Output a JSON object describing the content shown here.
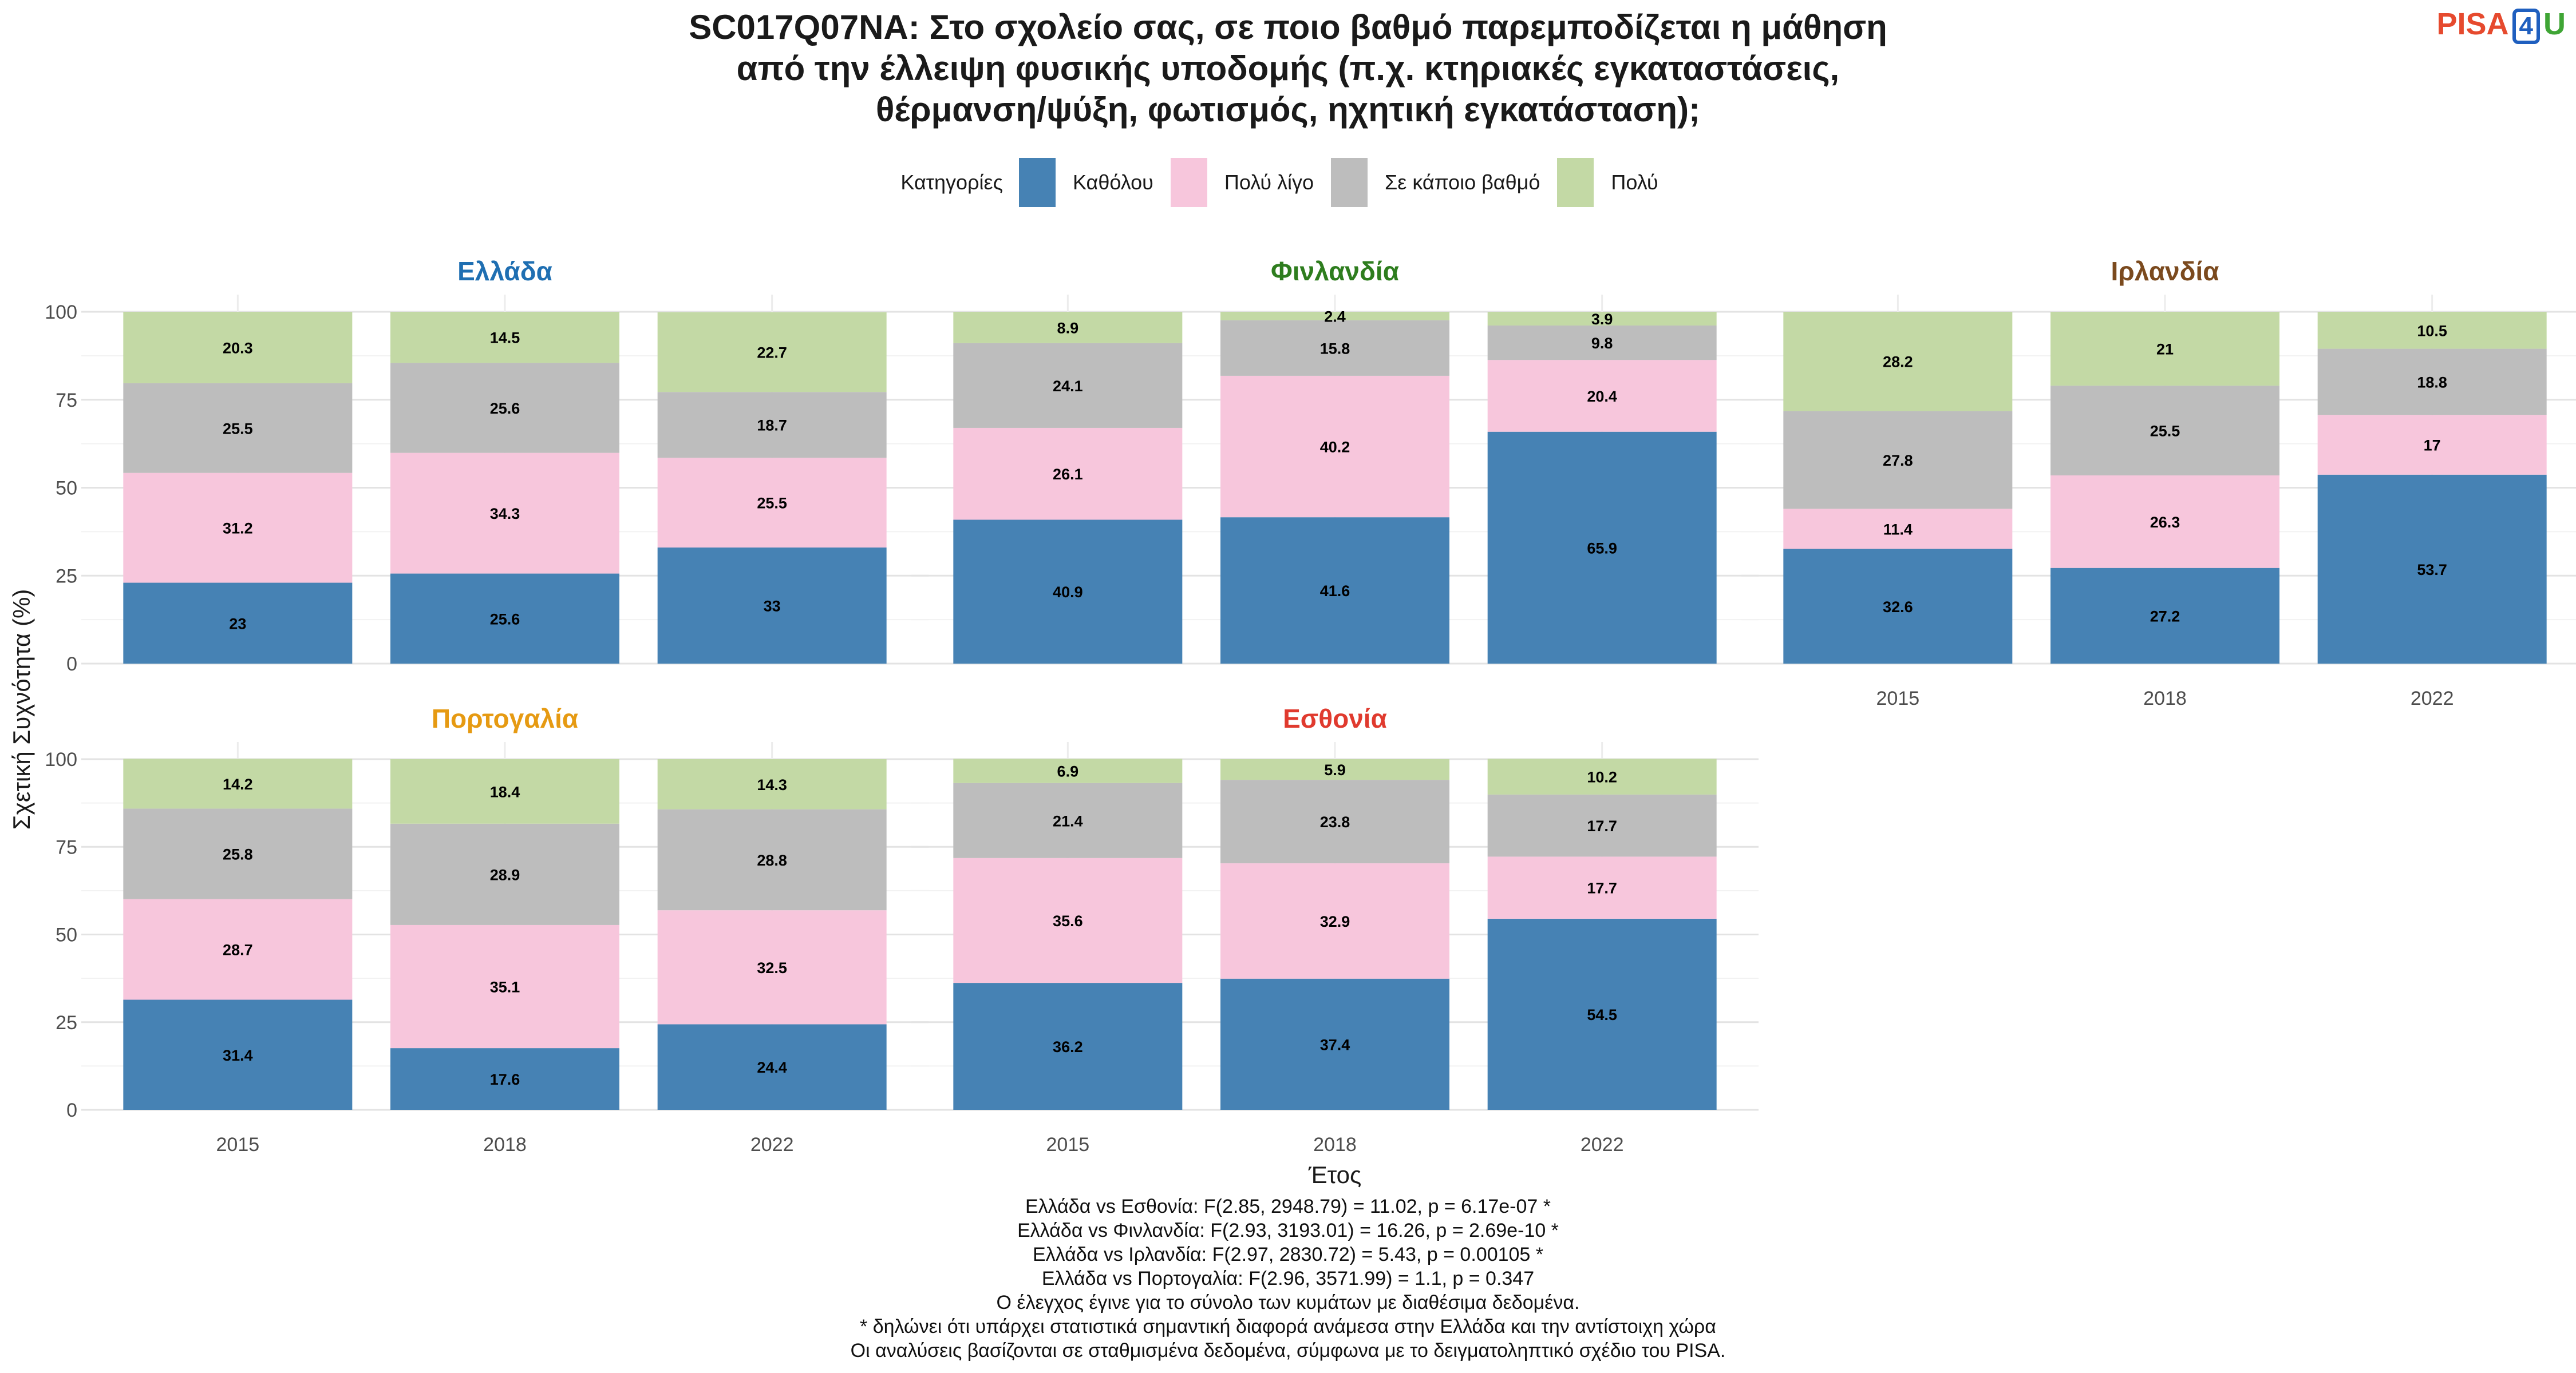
{
  "title": [
    "SC017Q07NA: Στο σχολείο σας, σε ποιο βαθμό παρεμποδίζεται η μάθηση",
    "από την έλλειψη φυσικής υποδομής (π.χ. κτηριακές εγκαταστάσεις,",
    "θέρμανση/ψύξη, φωτισμός, ηχητική εγκατάσταση);"
  ],
  "logo": {
    "part1": "PISA",
    "part2": "4",
    "part3": "U"
  },
  "legend": {
    "title": "Κατηγορίες",
    "items": [
      {
        "label": "Καθόλου",
        "color": "#4682b4"
      },
      {
        "label": "Πολύ λίγο",
        "color": "#f7c6dc"
      },
      {
        "label": "Σε κάποιο βαθμό",
        "color": "#bdbdbd"
      },
      {
        "label": "Πολύ",
        "color": "#c3d9a5"
      }
    ]
  },
  "chart_data": {
    "type": "bar",
    "stacked": true,
    "xlabel": "Έτος",
    "ylabel": "Σχετική Συχνότητα (%)",
    "ylim": [
      0,
      100
    ],
    "yticks": [
      0,
      25,
      50,
      75,
      100
    ],
    "categories": [
      "2015",
      "2018",
      "2022"
    ],
    "series_names": [
      "Καθόλου",
      "Πολύ λίγο",
      "Σε κάποιο βαθμό",
      "Πολύ"
    ],
    "panels": [
      {
        "name": "Ελλάδα",
        "color": "#1f6fb2",
        "values": [
          [
            23,
            31.2,
            25.5,
            20.3
          ],
          [
            25.6,
            34.3,
            25.6,
            14.5
          ],
          [
            33,
            25.5,
            18.7,
            22.7
          ]
        ]
      },
      {
        "name": "Φινλανδία",
        "color": "#2e7d1e",
        "values": [
          [
            40.9,
            26.1,
            24.1,
            8.9
          ],
          [
            41.6,
            40.2,
            15.8,
            2.4
          ],
          [
            65.9,
            20.4,
            9.8,
            3.9
          ]
        ]
      },
      {
        "name": "Ιρλανδία",
        "color": "#7b4a1e",
        "values": [
          [
            32.6,
            11.4,
            27.8,
            28.2
          ],
          [
            27.2,
            26.3,
            25.5,
            21
          ],
          [
            53.7,
            17,
            18.8,
            10.5
          ]
        ]
      },
      {
        "name": "Πορτογαλία",
        "color": "#e69a12",
        "values": [
          [
            31.4,
            28.7,
            25.8,
            14.2
          ],
          [
            17.6,
            35.1,
            28.9,
            18.4
          ],
          [
            24.4,
            32.5,
            28.8,
            14.3
          ]
        ]
      },
      {
        "name": "Εσθονία",
        "color": "#e03a2e",
        "values": [
          [
            36.2,
            35.6,
            21.4,
            6.9
          ],
          [
            37.4,
            32.9,
            23.8,
            5.9
          ],
          [
            54.5,
            17.7,
            17.7,
            10.2
          ]
        ]
      }
    ]
  },
  "footer": [
    "Ελλάδα vs Εσθονία: F(2.85, 2948.79) = 11.02, p = 6.17e-07 *",
    "Ελλάδα vs Φινλανδία: F(2.93, 3193.01) = 16.26, p = 2.69e-10 *",
    "Ελλάδα vs Ιρλανδία: F(2.97, 2830.72) = 5.43, p = 0.00105 *",
    "Ελλάδα vs Πορτογαλία: F(2.96, 3571.99) = 1.1, p = 0.347",
    "Ο έλεγχος έγινε για το σύνολο των κυμάτων με διαθέσιμα δεδομένα.",
    "* δηλώνει ότι υπάρχει στατιστικά σημαντική διαφορά ανάμεσα στην Ελλάδα και την αντίστοιχη χώρα",
    "Οι αναλύσεις βασίζονται σε σταθμισμένα δεδομένα, σύμφωνα με το δειγματοληπτικό σχέδιο του PISA."
  ]
}
